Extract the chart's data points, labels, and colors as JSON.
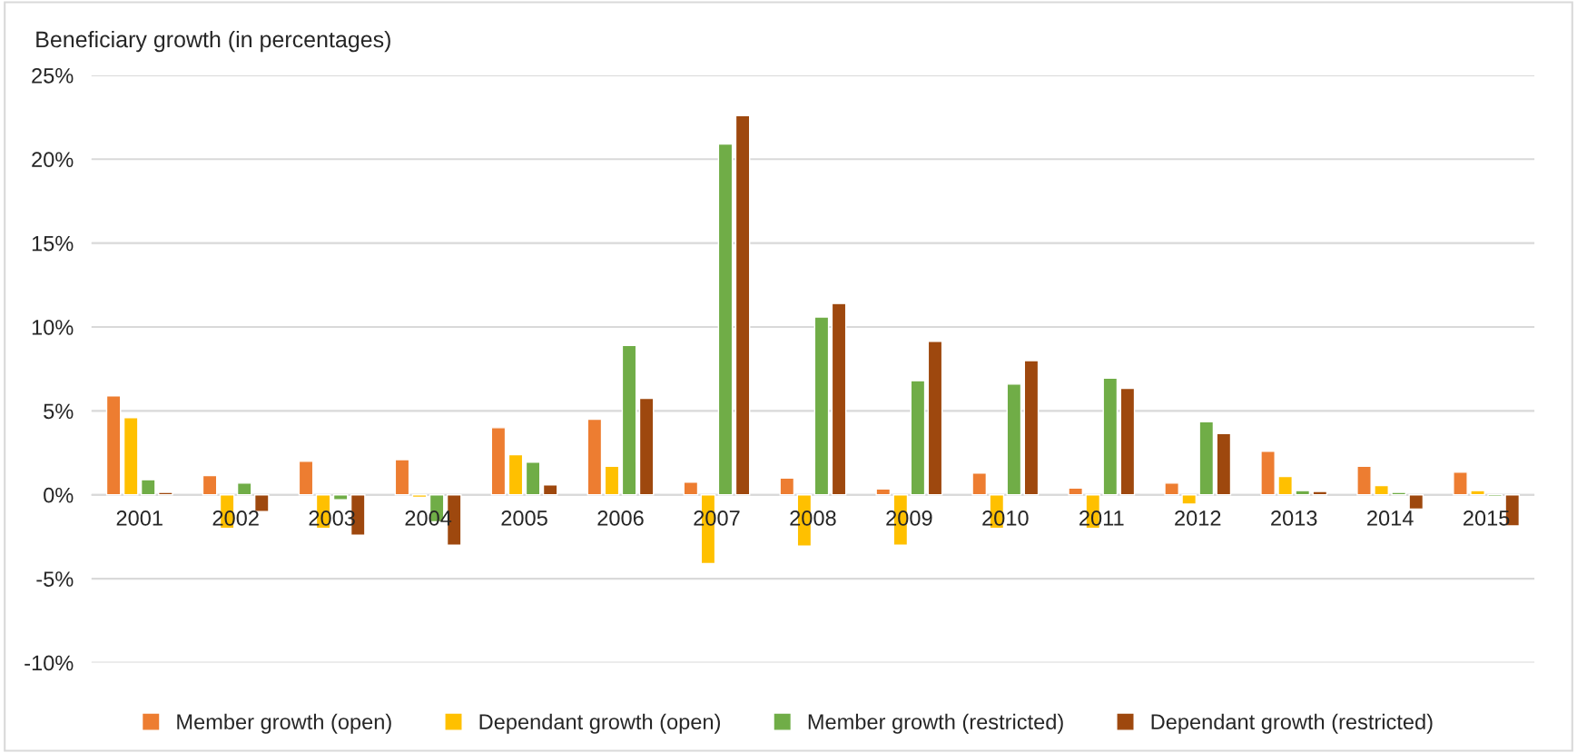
{
  "chart_data": {
    "type": "bar",
    "title": "Beneficiary growth (in percentages)",
    "categories": [
      "2001",
      "2002",
      "2003",
      "2004",
      "2005",
      "2006",
      "2007",
      "2008",
      "2009",
      "2010",
      "2011",
      "2012",
      "2013",
      "2014",
      "2015"
    ],
    "series": [
      {
        "name": "Member growth (open)",
        "color": "#ed7d31",
        "values": [
          5.9,
          1.15,
          2.0,
          2.1,
          4.0,
          4.5,
          0.75,
          1.0,
          0.35,
          1.3,
          0.4,
          0.7,
          2.6,
          1.7,
          1.35
        ]
      },
      {
        "name": "Dependant growth (open)",
        "color": "#ffc000",
        "values": [
          4.6,
          -2.0,
          -2.0,
          -0.15,
          2.4,
          1.7,
          -4.1,
          -3.05,
          -3.0,
          -2.0,
          -2.0,
          -0.55,
          1.1,
          0.55,
          0.25
        ]
      },
      {
        "name": "Member growth (restricted)",
        "color": "#70ad47",
        "values": [
          0.9,
          0.7,
          -0.3,
          -1.6,
          1.95,
          8.9,
          20.9,
          10.6,
          6.8,
          6.6,
          6.95,
          4.35,
          0.25,
          0.15,
          -0.1
        ]
      },
      {
        "name": "Dependant growth (restricted)",
        "color": "#9e480e",
        "values": [
          0.15,
          -1.0,
          -2.4,
          -3.0,
          0.6,
          5.75,
          22.6,
          11.4,
          9.15,
          8.0,
          6.35,
          3.65,
          0.2,
          -0.85,
          -1.85
        ]
      }
    ],
    "ylim": [
      -10,
      25
    ],
    "yticks": [
      {
        "value": -10,
        "label": "-10%"
      },
      {
        "value": -5,
        "label": "-5%"
      },
      {
        "value": 0,
        "label": "0%"
      },
      {
        "value": 5,
        "label": "5%"
      },
      {
        "value": 10,
        "label": "10%"
      },
      {
        "value": 15,
        "label": "15%"
      },
      {
        "value": 20,
        "label": "20%"
      },
      {
        "value": 25,
        "label": "25%"
      }
    ],
    "grid": "y",
    "legend": "bottom"
  }
}
